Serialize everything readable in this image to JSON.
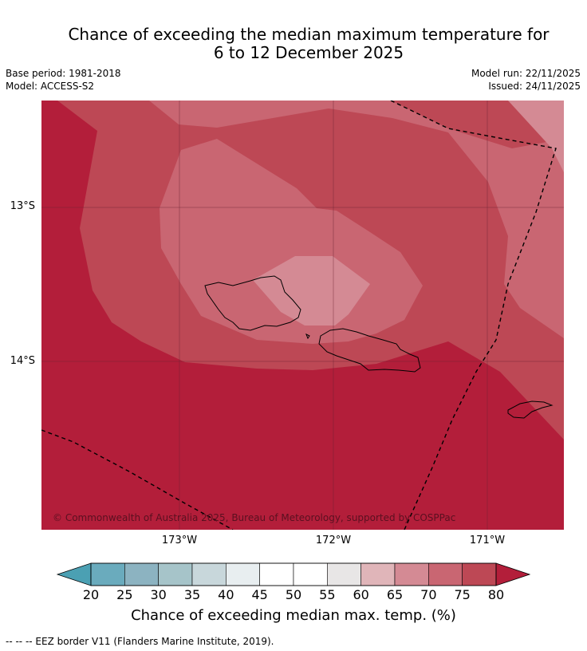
{
  "title_line1": "Chance of exceeding the median maximum temperature for",
  "title_line2": "6 to 12 December 2025",
  "header": {
    "base_period": "Base period: 1981-2018",
    "model": "Model: ACCESS-S2",
    "model_run": "Model run: 22/11/2025",
    "issued": "Issued: 24/11/2025"
  },
  "map": {
    "lat_labels": [
      "13°S",
      "14°S"
    ],
    "lon_labels": [
      "173°W",
      "172°W",
      "171°W"
    ],
    "copyright": "© Commonwealth of Australia 2025, Bureau of Meteorology, supported by COSPPac"
  },
  "colorbar": {
    "ticks": [
      "20",
      "25",
      "30",
      "35",
      "40",
      "45",
      "50",
      "55",
      "60",
      "65",
      "70",
      "75",
      "80"
    ],
    "colors": [
      "#6aabbd",
      "#8cb3c1",
      "#a6c4c9",
      "#c8d7db",
      "#e8eef0",
      "#ffffff",
      "#ffffff",
      "#e8e6e6",
      "#e0b5b9",
      "#d48a94",
      "#c96672",
      "#bd4855"
    ],
    "low_color": "#4ba0b3",
    "high_color": "#b31e3a",
    "label": "Chance of exceeding median max. temp. (%)"
  },
  "footer": "--  --  -- EEZ border V11 (Flanders Marine Institute, 2019)."
}
